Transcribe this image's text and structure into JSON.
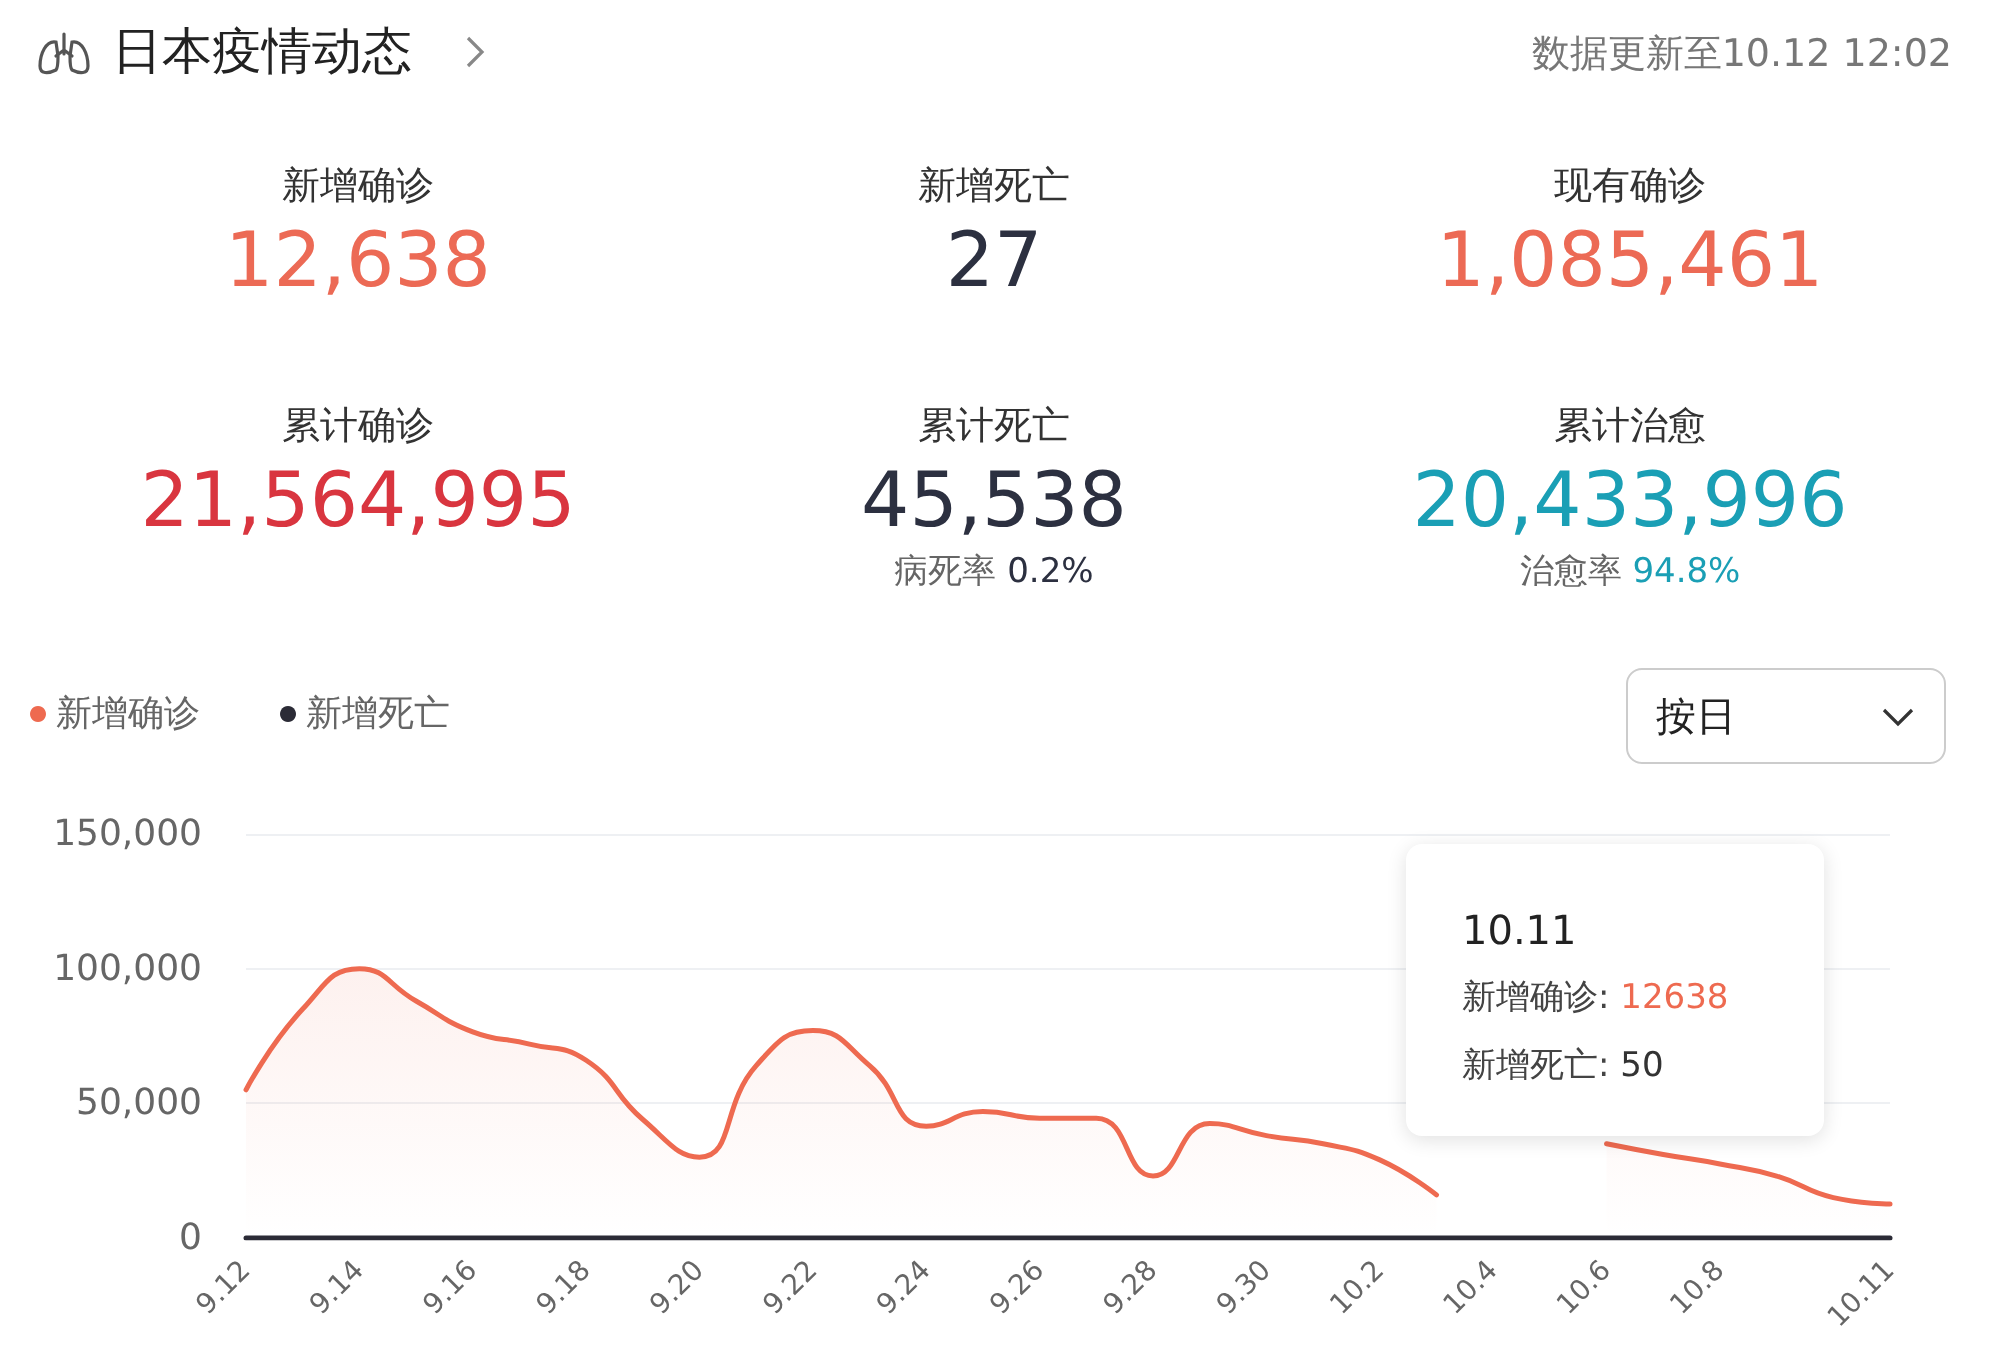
{
  "chart_data": {
    "type": "line",
    "title": "日本疫情动态",
    "subtitle": "数据更新至10.12 12:02",
    "annotations": [
      "新增确诊",
      "12,638",
      "新增死亡",
      "27",
      "现有确诊",
      "1,085,461",
      "累计确诊",
      "21,564,995",
      "累计死亡",
      "45,538",
      "病死率 0.2%",
      "累计治愈",
      "20,433,996",
      "治愈率 94.8%",
      "按日",
      "10.11",
      "新增确诊: 12638",
      "新增死亡: 50"
    ],
    "categories": [
      "9.12",
      null,
      "9.14",
      null,
      "9.16",
      null,
      "9.18",
      null,
      "9.20",
      null,
      "9.22",
      null,
      "9.24",
      null,
      "9.26",
      null,
      "9.28",
      null,
      "9.30",
      null,
      "10.2",
      null,
      "10.4",
      null,
      "10.6",
      null,
      "10.8",
      null,
      null,
      "10.11"
    ],
    "series": [
      {
        "name": "新增确诊",
        "type": "area",
        "color": "#ee6a50",
        "values": [
          55000,
          85000,
          100000,
          88000,
          76500,
          72000,
          66000,
          44000,
          30000,
          64000,
          77000,
          64000,
          41500,
          47000,
          44500,
          44500,
          23000,
          42500,
          38000,
          35000,
          29000,
          16000,
          null,
          null,
          35000,
          31000,
          27500,
          23000,
          15000,
          12638
        ]
      },
      {
        "name": "新增死亡",
        "type": "line",
        "color": "#2b2b36",
        "values": [
          0,
          0,
          0,
          0,
          0,
          0,
          0,
          0,
          0,
          0,
          0,
          0,
          0,
          0,
          0,
          0,
          0,
          0,
          0,
          0,
          0,
          0,
          0,
          0,
          0,
          0,
          0,
          0,
          0,
          0
        ]
      }
    ],
    "ylim": [
      0,
      150000
    ],
    "yticks": [
      0,
      {
        "value": 50000,
        "label": "50,000"
      },
      {
        "value": 100000,
        "label": "100,000"
      },
      {
        "value": 150000,
        "label": "150,000"
      }
    ],
    "grid": "y",
    "legend": "top left",
    "marker": "none",
    "line_style": "solid"
  }
}
